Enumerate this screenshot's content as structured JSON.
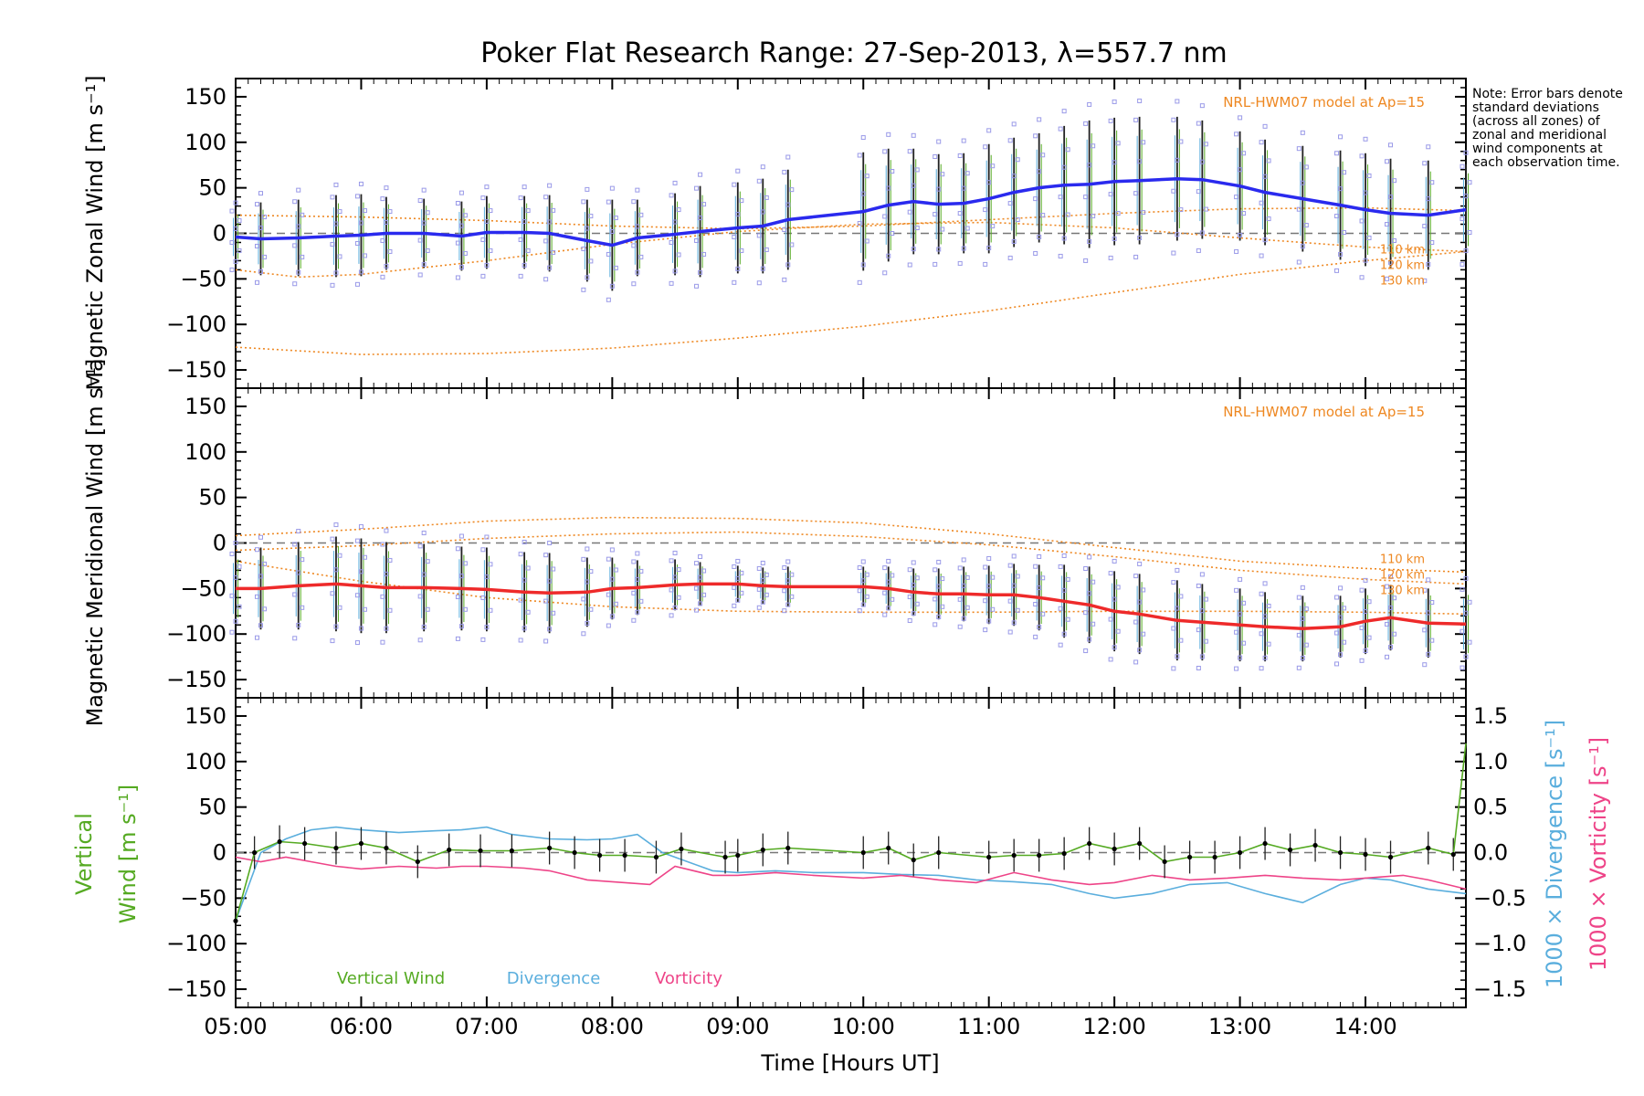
{
  "title": "Poker Flat Research Range: 27-Sep-2013, λ=557.7 nm",
  "note": "Note: Error bars denote standard deviations (across all zones) of zonal and meridional wind components at each observation time.",
  "chart_data": [
    {
      "type": "line",
      "panel": "zonal",
      "ylabel": "Magnetic Zonal Wind [m s⁻¹]",
      "ylim": [
        -170,
        170
      ],
      "yticks": [
        150,
        100,
        50,
        0,
        -50,
        -100,
        -150
      ],
      "model_label": "NRL-HWM07 model at Ap=15",
      "model_altitudes": [
        "110 km",
        "120 km",
        "130 km"
      ],
      "color": "#2a2aee",
      "x": [
        5.0,
        5.2,
        5.5,
        5.8,
        6.0,
        6.2,
        6.5,
        6.8,
        7.0,
        7.3,
        7.5,
        7.8,
        8.0,
        8.2,
        8.5,
        8.7,
        9.0,
        9.2,
        9.4,
        10.0,
        10.2,
        10.4,
        10.6,
        10.8,
        11.0,
        11.2,
        11.4,
        11.6,
        11.8,
        12.0,
        12.2,
        12.5,
        12.7,
        13.0,
        13.2,
        13.5,
        13.8,
        14.0,
        14.2,
        14.5,
        14.8
      ],
      "values": [
        -4,
        -6,
        -5,
        -3,
        -2,
        0,
        0,
        -3,
        1,
        1,
        0,
        -8,
        -13,
        -5,
        -1,
        2,
        6,
        8,
        15,
        24,
        31,
        35,
        32,
        33,
        38,
        45,
        50,
        53,
        54,
        57,
        58,
        60,
        59,
        52,
        45,
        38,
        31,
        26,
        22,
        20,
        26
      ],
      "err": [
        30,
        40,
        42,
        45,
        45,
        40,
        38,
        38,
        40,
        40,
        42,
        45,
        50,
        42,
        45,
        50,
        50,
        52,
        55,
        65,
        62,
        58,
        55,
        55,
        60,
        60,
        60,
        65,
        70,
        70,
        70,
        68,
        65,
        60,
        58,
        58,
        60,
        62,
        60,
        60,
        50
      ],
      "model": [
        {
          "name": "110 km",
          "x": [
            5.0,
            6.0,
            7.0,
            8.0,
            9.0,
            10.0,
            11.0,
            12.0,
            13.0,
            14.0,
            14.8
          ],
          "values": [
            20,
            18,
            14,
            8,
            5,
            8,
            15,
            22,
            27,
            28,
            25
          ]
        },
        {
          "name": "120 km",
          "x": [
            5.0,
            5.5,
            6.0,
            7.0,
            8.0,
            9.0,
            10.0,
            11.0,
            12.0,
            13.0,
            14.0,
            14.8
          ],
          "values": [
            -40,
            -48,
            -45,
            -30,
            -12,
            2,
            10,
            12,
            6,
            -5,
            -15,
            -20
          ]
        },
        {
          "name": "130 km",
          "x": [
            5.0,
            6.0,
            7.0,
            8.0,
            9.0,
            10.0,
            11.0,
            12.0,
            13.0,
            14.0,
            14.8
          ],
          "values": [
            -125,
            -133,
            -132,
            -126,
            -115,
            -102,
            -85,
            -65,
            -45,
            -30,
            -20
          ]
        }
      ]
    },
    {
      "type": "line",
      "panel": "meridional",
      "ylabel": "Magnetic Meridional Wind [m s⁻¹]",
      "ylim": [
        -170,
        170
      ],
      "yticks": [
        150,
        100,
        50,
        0,
        -50,
        -100,
        -150
      ],
      "model_label": "NRL-HWM07 model at Ap=15",
      "model_altitudes": [
        "110 km",
        "120 km",
        "130 km"
      ],
      "color": "#ee2a2a",
      "x": [
        5.0,
        5.2,
        5.5,
        5.8,
        6.0,
        6.2,
        6.5,
        6.8,
        7.0,
        7.3,
        7.5,
        7.8,
        8.0,
        8.2,
        8.5,
        8.7,
        9.0,
        9.2,
        9.4,
        10.0,
        10.2,
        10.4,
        10.6,
        10.8,
        11.0,
        11.2,
        11.4,
        11.6,
        11.8,
        12.0,
        12.2,
        12.5,
        12.7,
        13.0,
        13.2,
        13.5,
        13.8,
        14.0,
        14.2,
        14.5,
        14.8
      ],
      "values": [
        -50,
        -50,
        -47,
        -45,
        -47,
        -49,
        -49,
        -50,
        -51,
        -54,
        -55,
        -54,
        -50,
        -49,
        -46,
        -45,
        -45,
        -47,
        -48,
        -48,
        -50,
        -54,
        -56,
        -56,
        -57,
        -57,
        -60,
        -64,
        -68,
        -75,
        -78,
        -85,
        -87,
        -90,
        -92,
        -94,
        -92,
        -86,
        -82,
        -88,
        -89
      ],
      "err": [
        40,
        45,
        48,
        52,
        52,
        50,
        48,
        46,
        46,
        44,
        44,
        38,
        34,
        30,
        28,
        24,
        20,
        20,
        22,
        22,
        24,
        26,
        28,
        30,
        32,
        34,
        36,
        40,
        42,
        44,
        44,
        44,
        42,
        40,
        38,
        36,
        34,
        36,
        36,
        38,
        40
      ],
      "model": [
        {
          "name": "110 km",
          "x": [
            5.0,
            6.0,
            7.0,
            8.0,
            9.0,
            10.0,
            11.0,
            12.0,
            13.0,
            14.0,
            14.8
          ],
          "values": [
            8,
            15,
            24,
            28,
            27,
            22,
            10,
            -5,
            -20,
            -28,
            -32
          ]
        },
        {
          "name": "120 km",
          "x": [
            5.0,
            6.0,
            7.0,
            8.0,
            9.0,
            10.0,
            11.0,
            12.0,
            13.0,
            14.0,
            14.8
          ],
          "values": [
            -8,
            -3,
            5,
            10,
            12,
            7,
            -2,
            -15,
            -30,
            -40,
            -45
          ]
        },
        {
          "name": "130 km",
          "x": [
            5.0,
            6.0,
            7.0,
            8.0,
            9.0,
            10.0,
            11.0,
            12.0,
            13.0,
            14.0,
            14.8
          ],
          "values": [
            -20,
            -42,
            -60,
            -70,
            -75,
            -76,
            -76,
            -75,
            -75,
            -76,
            -78
          ]
        }
      ]
    },
    {
      "type": "line",
      "panel": "vertical",
      "ylabel_left_1": "Vertical",
      "ylabel_left_2": "Wind [m s⁻¹]",
      "ylabel_right_blue": "1000 × Divergence [s⁻¹]",
      "ylabel_right_pink": "1000 × Vorticity [s⁻¹]",
      "ylim": [
        -170,
        170
      ],
      "yticks": [
        150,
        100,
        50,
        0,
        -50,
        -100,
        -150
      ],
      "ylim_right": [
        -1.7,
        1.7
      ],
      "yticks_right": [
        1.5,
        1.0,
        0.5,
        0.0,
        -0.5,
        -1.0,
        -1.5
      ],
      "series": [
        {
          "name": "Vertical Wind",
          "color": "#55aa22",
          "x": [
            5.0,
            5.15,
            5.35,
            5.55,
            5.8,
            6.0,
            6.2,
            6.45,
            6.7,
            6.95,
            7.2,
            7.5,
            7.7,
            7.9,
            8.1,
            8.35,
            8.55,
            8.9,
            9.0,
            9.2,
            9.4,
            10.0,
            10.2,
            10.4,
            10.6,
            11.0,
            11.2,
            11.4,
            11.6,
            11.8,
            12.0,
            12.2,
            12.4,
            12.6,
            12.8,
            13.0,
            13.2,
            13.4,
            13.6,
            13.8,
            14.0,
            14.2,
            14.5,
            14.7
          ],
          "values": [
            -75,
            0,
            12,
            10,
            5,
            10,
            5,
            -10,
            3,
            2,
            2,
            5,
            0,
            -3,
            -3,
            -5,
            4,
            -5,
            -3,
            3,
            5,
            0,
            5,
            -8,
            0,
            -5,
            -3,
            -3,
            -1,
            10,
            4,
            10,
            -10,
            -5,
            -5,
            0,
            10,
            3,
            8,
            0,
            -2,
            -5,
            5,
            -2
          ],
          "err": [
            20,
            18,
            18,
            18,
            18,
            18,
            18,
            18,
            18,
            18,
            18,
            18,
            18,
            18,
            18,
            18,
            18,
            18,
            18,
            18,
            18,
            18,
            18,
            18,
            18,
            18,
            18,
            18,
            18,
            18,
            18,
            18,
            18,
            18,
            18,
            18,
            18,
            18,
            18,
            18,
            18,
            18,
            18,
            18
          ]
        },
        {
          "name": "Divergence",
          "color": "#5aaedd",
          "x": [
            5.0,
            5.2,
            5.4,
            5.6,
            5.8,
            6.0,
            6.3,
            6.6,
            6.8,
            7.0,
            7.2,
            7.5,
            7.8,
            8.0,
            8.2,
            8.4,
            8.6,
            8.8,
            9.0,
            9.3,
            9.6,
            10.0,
            10.3,
            10.6,
            10.9,
            11.2,
            11.5,
            11.8,
            12.0,
            12.3,
            12.6,
            12.9,
            13.2,
            13.5,
            13.8,
            14.0,
            14.2,
            14.5,
            14.8
          ],
          "values": [
            -0.75,
            0.0,
            0.15,
            0.25,
            0.28,
            0.25,
            0.22,
            0.24,
            0.25,
            0.28,
            0.2,
            0.15,
            0.14,
            0.15,
            0.2,
            0.0,
            -0.1,
            -0.2,
            -0.22,
            -0.2,
            -0.22,
            -0.22,
            -0.24,
            -0.25,
            -0.3,
            -0.32,
            -0.35,
            -0.45,
            -0.5,
            -0.45,
            -0.35,
            -0.33,
            -0.45,
            -0.55,
            -0.35,
            -0.28,
            -0.3,
            -0.4,
            -0.45
          ]
        },
        {
          "name": "Vorticity",
          "color": "#ee4488",
          "x": [
            5.0,
            5.2,
            5.4,
            5.6,
            5.8,
            6.0,
            6.3,
            6.6,
            6.8,
            7.0,
            7.3,
            7.5,
            7.8,
            8.0,
            8.3,
            8.5,
            8.8,
            9.0,
            9.3,
            9.6,
            10.0,
            10.3,
            10.6,
            10.9,
            11.2,
            11.5,
            11.8,
            12.0,
            12.3,
            12.6,
            12.9,
            13.2,
            13.5,
            13.8,
            14.0,
            14.3,
            14.5,
            14.8
          ],
          "values": [
            -0.05,
            -0.1,
            -0.05,
            -0.1,
            -0.15,
            -0.18,
            -0.15,
            -0.17,
            -0.15,
            -0.15,
            -0.17,
            -0.2,
            -0.3,
            -0.32,
            -0.35,
            -0.15,
            -0.25,
            -0.25,
            -0.22,
            -0.25,
            -0.28,
            -0.25,
            -0.3,
            -0.33,
            -0.22,
            -0.3,
            -0.35,
            -0.33,
            -0.25,
            -0.3,
            -0.28,
            -0.25,
            -0.28,
            -0.3,
            -0.28,
            -0.25,
            -0.3,
            -0.4
          ]
        }
      ],
      "legend": [
        "Vertical Wind",
        "Divergence",
        "Vorticity"
      ]
    }
  ],
  "xaxis": {
    "label": "Time [Hours UT]",
    "range": [
      5.0,
      14.8
    ],
    "ticks": [
      5,
      6,
      7,
      8,
      9,
      10,
      11,
      12,
      13,
      14
    ],
    "tick_labels": [
      "05:00",
      "06:00",
      "07:00",
      "08:00",
      "09:00",
      "10:00",
      "11:00",
      "12:00",
      "13:00",
      "14:00"
    ]
  },
  "colors": {
    "model": "#ee8822",
    "zero_line": "#777777",
    "scatter": "#9a9ae8",
    "errbar": "#222222"
  }
}
